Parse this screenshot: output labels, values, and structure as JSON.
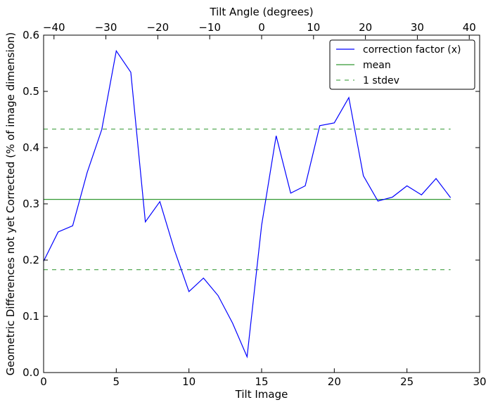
{
  "chart_data": {
    "type": "line",
    "xlabel": "Tilt Image",
    "ylabel": "Geometric Differences not yet Corrected (% of image dimension)",
    "top_xlabel": "Tilt Angle (degrees)",
    "xlim": [
      0,
      30
    ],
    "ylim": [
      0.0,
      0.6
    ],
    "top_xlim": [
      -42,
      42
    ],
    "x_ticks": [
      0,
      5,
      10,
      15,
      20,
      25,
      30
    ],
    "x_tick_labels": [
      "0",
      "5",
      "10",
      "15",
      "20",
      "25",
      "30"
    ],
    "y_ticks": [
      0.0,
      0.1,
      0.2,
      0.3,
      0.4,
      0.5,
      0.6
    ],
    "y_tick_labels": [
      "0.0",
      "0.1",
      "0.2",
      "0.3",
      "0.4",
      "0.5",
      "0.6"
    ],
    "top_ticks": [
      -40,
      -30,
      -20,
      -10,
      0,
      10,
      20,
      30,
      40
    ],
    "top_tick_labels": [
      "−40",
      "−30",
      "−20",
      "−10",
      "0",
      "10",
      "20",
      "30",
      "40"
    ],
    "grid": false,
    "legend_position": "top-right",
    "series": [
      {
        "name": "correction factor (x)",
        "style": "solid",
        "color": "#0000ff",
        "x": [
          0,
          1,
          2,
          3,
          4,
          5,
          6,
          7,
          8,
          9,
          10,
          11,
          12,
          13,
          14,
          15,
          16,
          17,
          18,
          19,
          20,
          21,
          22,
          23,
          24,
          25,
          26,
          27,
          28
        ],
        "values": [
          0.198,
          0.25,
          0.261,
          0.356,
          0.432,
          0.572,
          0.534,
          0.268,
          0.304,
          0.218,
          0.144,
          0.168,
          0.137,
          0.088,
          0.028,
          0.262,
          0.421,
          0.319,
          0.332,
          0.439,
          0.444,
          0.489,
          0.35,
          0.305,
          0.312,
          0.332,
          0.316,
          0.345,
          0.311
        ]
      },
      {
        "name": "mean",
        "style": "solid",
        "color": "#339933",
        "x": [
          0,
          28
        ],
        "values": [
          0.308,
          0.308
        ]
      },
      {
        "name": "1 stdev",
        "style": "dashed",
        "color": "#55aa55",
        "x": [
          0,
          28
        ],
        "values": [
          0.433,
          0.433
        ]
      },
      {
        "name": "",
        "style": "dashed",
        "color": "#55aa55",
        "x": [
          0,
          28
        ],
        "values": [
          0.183,
          0.183
        ]
      }
    ]
  }
}
